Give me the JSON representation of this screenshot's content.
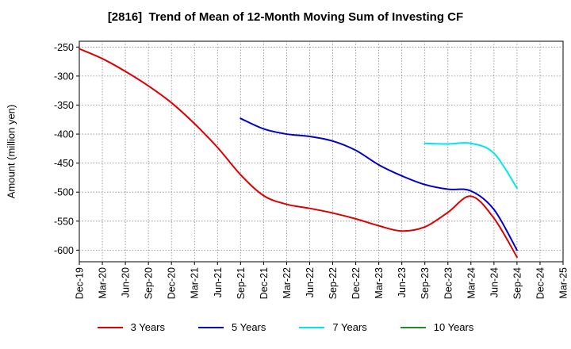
{
  "chart_data": {
    "type": "line",
    "title": "[2816]  Trend of Mean of 12-Month Moving Sum of Investing CF",
    "xlabel": "",
    "ylabel": "Amount (million yen)",
    "ylim": [
      -620,
      -240
    ],
    "yticks": [
      -250,
      -300,
      -350,
      -400,
      -450,
      -500,
      -550,
      -600
    ],
    "x_ticks": [
      "Dec-19",
      "Mar-20",
      "Jun-20",
      "Sep-20",
      "Dec-20",
      "Mar-21",
      "Jun-21",
      "Sep-21",
      "Dec-21",
      "Mar-22",
      "Jun-22",
      "Sep-22",
      "Dec-22",
      "Mar-23",
      "Jun-23",
      "Sep-23",
      "Dec-23",
      "Mar-24",
      "Jun-24",
      "Sep-24",
      "Dec-24",
      "Mar-25"
    ],
    "series": [
      {
        "name": "3 Years",
        "color": "#dd0000",
        "x": [
          "Dec-19",
          "Mar-20",
          "Jun-20",
          "Sep-20",
          "Dec-20",
          "Mar-21",
          "Jun-21",
          "Sep-21",
          "Dec-21",
          "Mar-22",
          "Jun-22",
          "Sep-22",
          "Dec-22",
          "Mar-23",
          "Jun-23",
          "Sep-23",
          "Dec-23",
          "Mar-24",
          "Jun-24",
          "Sep-24"
        ],
        "values": [
          -253,
          -270,
          -292,
          -317,
          -346,
          -382,
          -423,
          -470,
          -506,
          -521,
          -528,
          -536,
          -546,
          -558,
          -567,
          -560,
          -535,
          -507,
          -545,
          -612
        ]
      },
      {
        "name": "5 Years",
        "color": "#0000cc",
        "x": [
          "Sep-21",
          "Dec-21",
          "Mar-22",
          "Jun-22",
          "Sep-22",
          "Dec-22",
          "Mar-23",
          "Jun-23",
          "Sep-23",
          "Dec-23",
          "Mar-24",
          "Jun-24",
          "Sep-24"
        ],
        "values": [
          -373,
          -391,
          -400,
          -404,
          -412,
          -428,
          -453,
          -472,
          -487,
          -495,
          -498,
          -530,
          -600
        ]
      },
      {
        "name": "7 Years",
        "color": "#00e5ee",
        "x": [
          "Sep-23",
          "Dec-23",
          "Mar-24",
          "Jun-24",
          "Sep-24"
        ],
        "values": [
          -416,
          -417,
          -416,
          -433,
          -493
        ]
      },
      {
        "name": "10 Years",
        "color": "#228b22",
        "x": [],
        "values": []
      }
    ],
    "grid": true,
    "legend_position": "bottom"
  }
}
